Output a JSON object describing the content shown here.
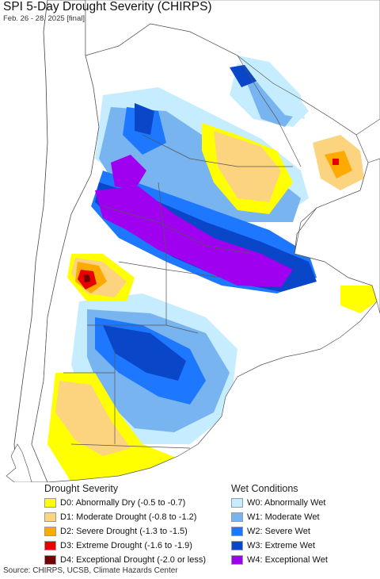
{
  "header": {
    "title": "SPI 5-Day Drought Severity (CHIRPS)",
    "subtitle": "Feb. 26 - 28, 2025 [final]"
  },
  "colors": {
    "ocean": "#ffffff",
    "land_outside": "#ffffff",
    "land_normal": "#ffffff",
    "borders": "#555555",
    "d0": "#ffff00",
    "d1": "#fcd37f",
    "d2": "#ffaa00",
    "d3": "#e60000",
    "d4": "#730000",
    "w0": "#c6ecff",
    "w1": "#78b4f0",
    "w2": "#1e78ff",
    "w3": "#0a46c8",
    "w4": "#a000f0"
  },
  "legend": {
    "drought": {
      "title": "Drought Severity",
      "items": [
        {
          "label": "D0: Abnormally Dry (-0.5 to -0.7)",
          "color": "#ffff00"
        },
        {
          "label": "D1: Moderate Drought (-0.8 to -1.2)",
          "color": "#fcd37f"
        },
        {
          "label": "D2: Severe Drought (-1.3 to -1.5)",
          "color": "#ffaa00"
        },
        {
          "label": "D3: Extreme Drought (-1.6 to -1.9)",
          "color": "#e60000"
        },
        {
          "label": "D4: Exceptional Drought (-2.0 or less)",
          "color": "#730000"
        }
      ]
    },
    "wet": {
      "title": "Wet Conditions",
      "items": [
        {
          "label": "W0: Abnormally Wet",
          "color": "#c6ecff"
        },
        {
          "label": "W1: Moderate Wet",
          "color": "#78b4f0"
        },
        {
          "label": "W2: Severe Wet",
          "color": "#1e78ff"
        },
        {
          "label": "W3: Extreme Wet",
          "color": "#0a46c8"
        },
        {
          "label": "W4: Exceptional Wet",
          "color": "#a000f0"
        }
      ]
    }
  },
  "source": "Source: CHIRPS, UCSB, Climate Hazards Center"
}
